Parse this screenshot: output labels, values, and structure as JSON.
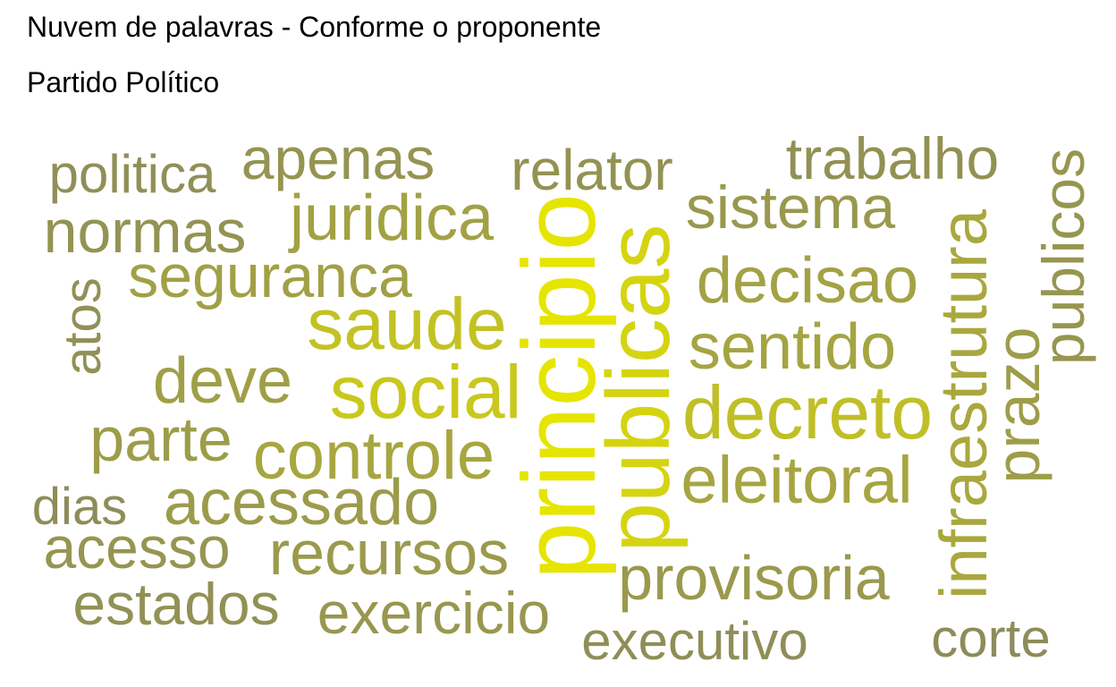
{
  "title": "Nuvem de palavras - Conforme o proponente",
  "subtitle": "Partido Político",
  "chart_data": {
    "type": "wordcloud",
    "color_scale": [
      "#868561",
      "#e6e500"
    ],
    "words": [
      {
        "text": "principio",
        "weight": 1.0
      },
      {
        "text": "publicas",
        "weight": 0.82
      },
      {
        "text": "social",
        "weight": 0.7
      },
      {
        "text": "saude",
        "weight": 0.64
      },
      {
        "text": "decreto",
        "weight": 0.6
      },
      {
        "text": "infraestrutura",
        "weight": 0.36
      },
      {
        "text": "controle",
        "weight": 0.34
      },
      {
        "text": "eleitoral",
        "weight": 0.33
      },
      {
        "text": "sentido",
        "weight": 0.32
      },
      {
        "text": "decisao",
        "weight": 0.3
      },
      {
        "text": "juridica",
        "weight": 0.29
      },
      {
        "text": "seguranca",
        "weight": 0.28
      },
      {
        "text": "deve",
        "weight": 0.27
      },
      {
        "text": "prazo",
        "weight": 0.25
      },
      {
        "text": "parte",
        "weight": 0.24
      },
      {
        "text": "acessado",
        "weight": 0.23
      },
      {
        "text": "recursos",
        "weight": 0.22
      },
      {
        "text": "provisoria",
        "weight": 0.21
      },
      {
        "text": "sistema",
        "weight": 0.2
      },
      {
        "text": "exercicio",
        "weight": 0.19
      },
      {
        "text": "publicos",
        "weight": 0.18
      },
      {
        "text": "acesso",
        "weight": 0.17
      },
      {
        "text": "apenas",
        "weight": 0.16
      },
      {
        "text": "normas",
        "weight": 0.15
      },
      {
        "text": "relator",
        "weight": 0.14
      },
      {
        "text": "trabalho",
        "weight": 0.13
      },
      {
        "text": "estados",
        "weight": 0.12
      },
      {
        "text": "atos",
        "weight": 0.11
      },
      {
        "text": "politica",
        "weight": 0.1
      },
      {
        "text": "executivo",
        "weight": 0.09
      },
      {
        "text": "dias",
        "weight": 0.08
      },
      {
        "text": "corte",
        "weight": 0.07
      }
    ]
  }
}
